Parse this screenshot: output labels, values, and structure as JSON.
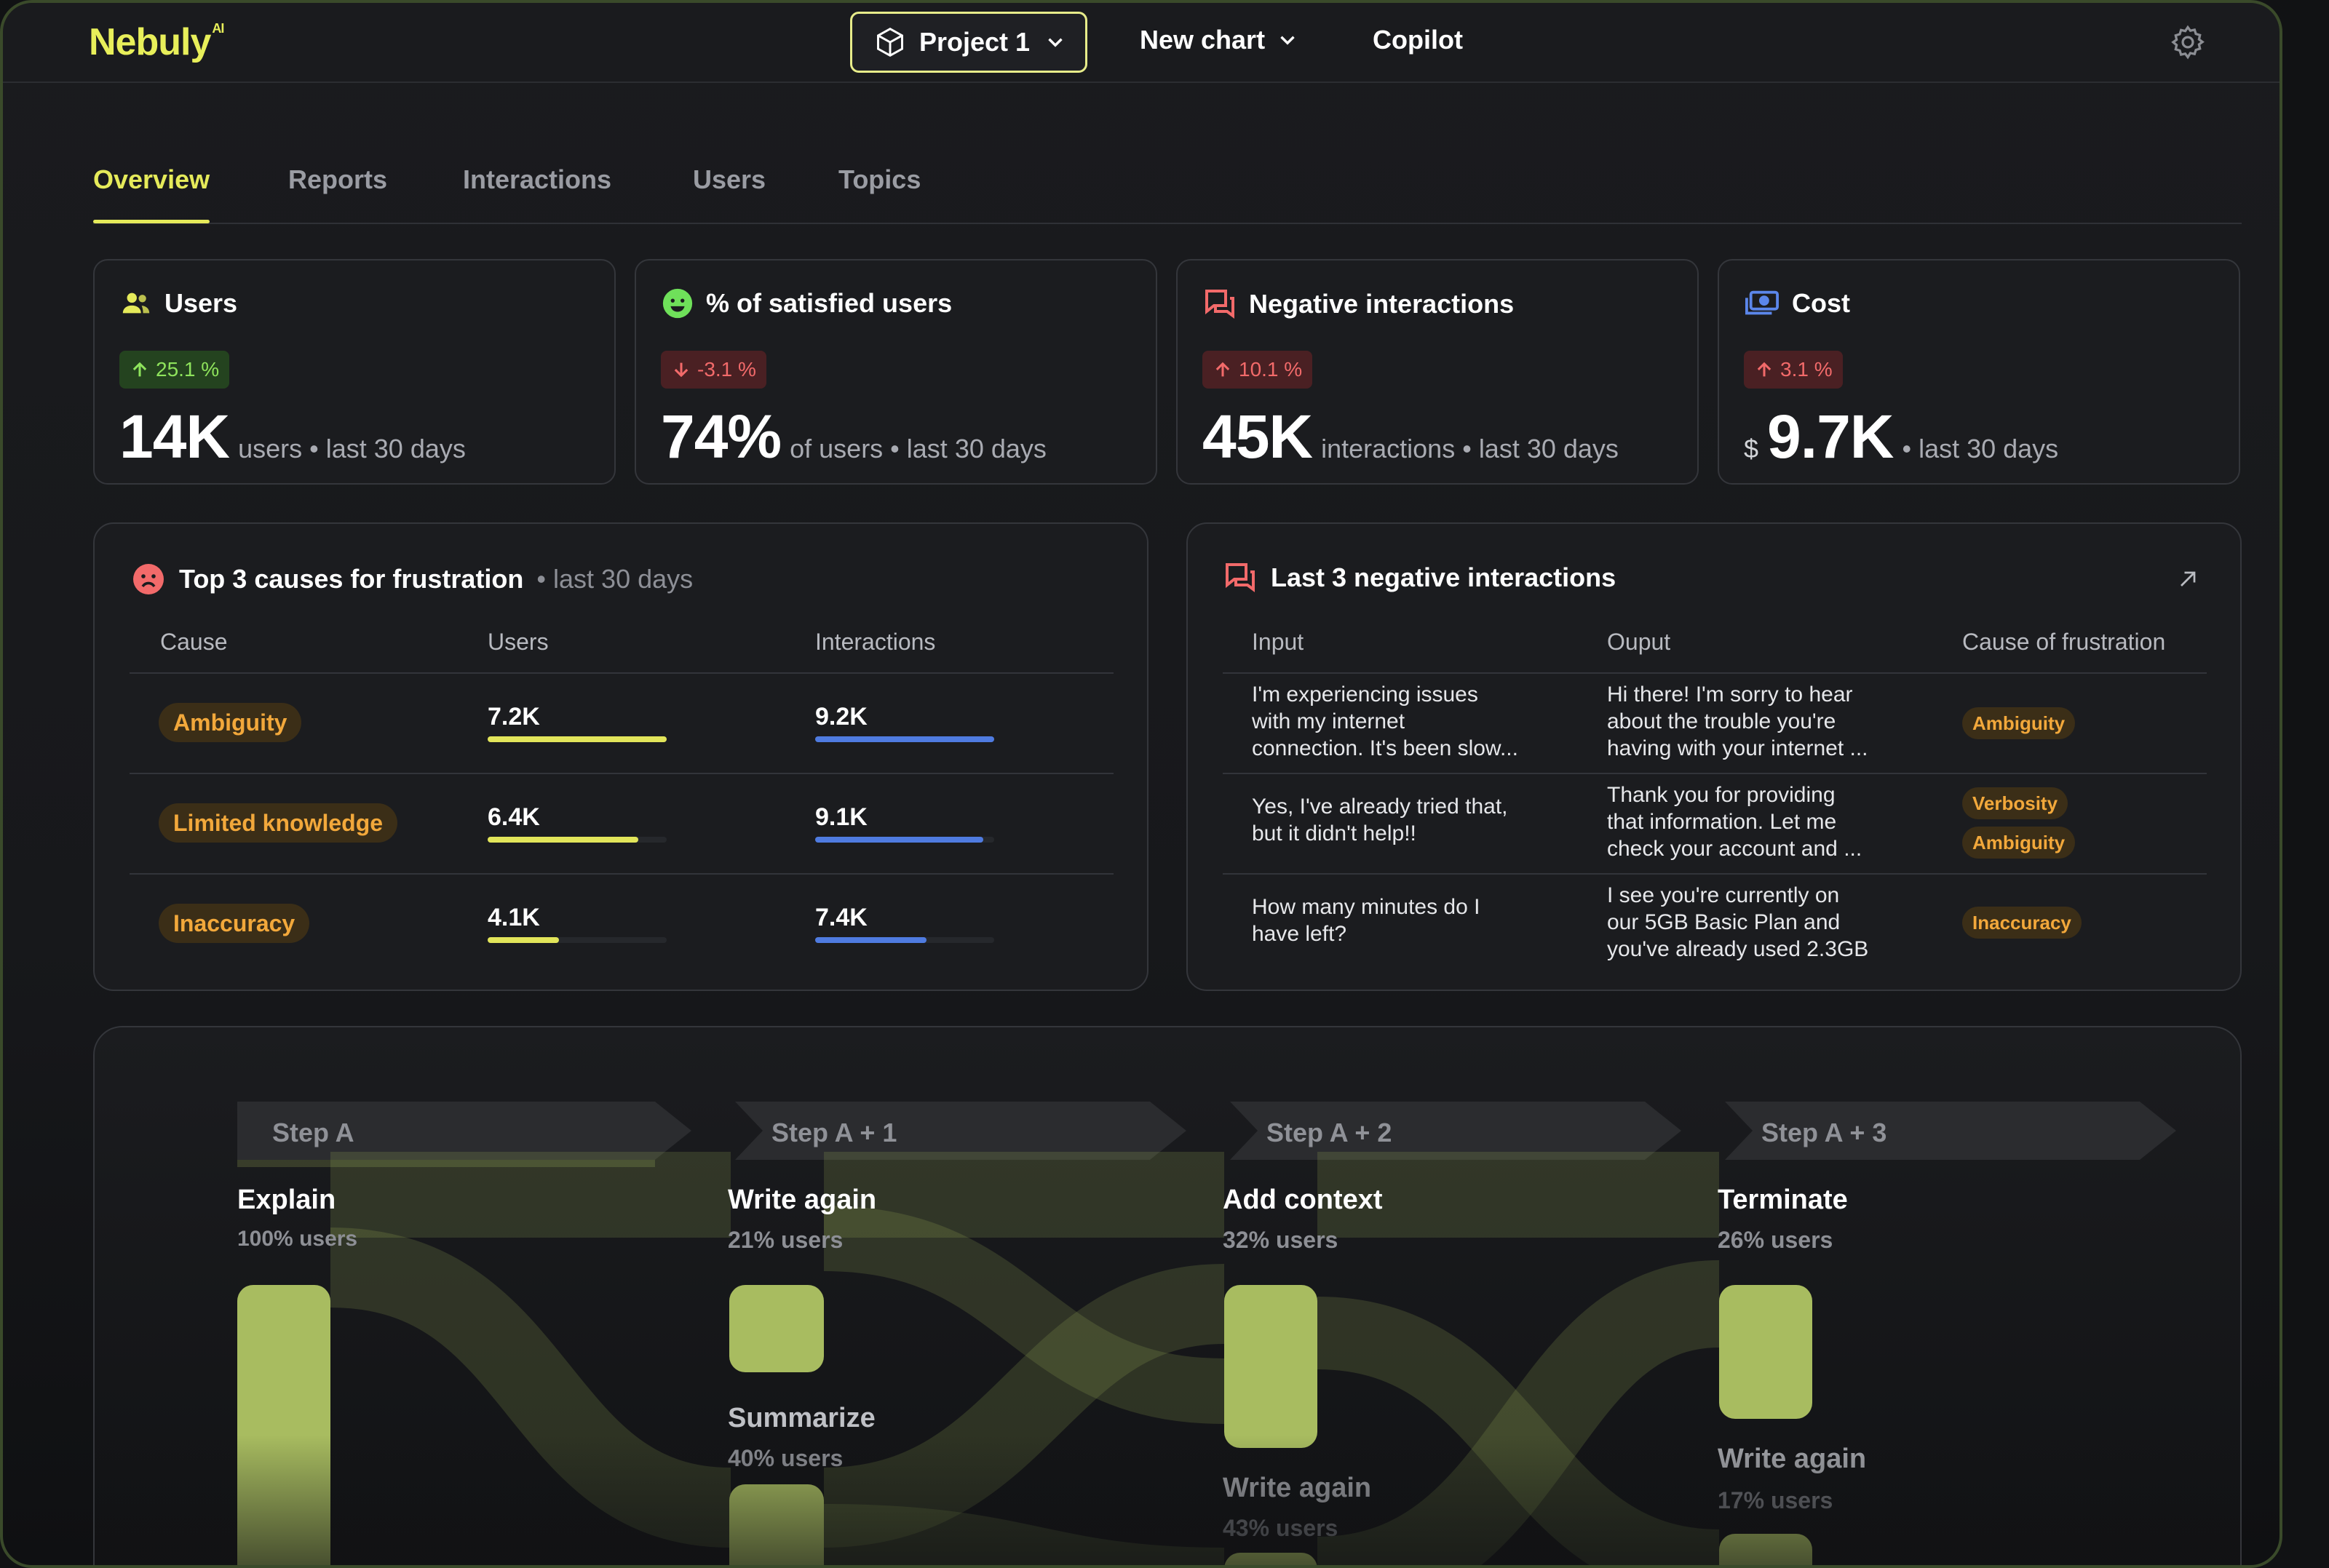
{
  "brand": {
    "name": "Nebuly",
    "sup": "AI"
  },
  "topnav": {
    "project_label": "Project 1",
    "new_chart_label": "New chart",
    "copilot_label": "Copilot"
  },
  "tabs": [
    {
      "label": "Overview",
      "active": true
    },
    {
      "label": "Reports"
    },
    {
      "label": "Interactions"
    },
    {
      "label": "Users"
    },
    {
      "label": "Topics"
    }
  ],
  "kpis": [
    {
      "title": "Users",
      "icon": "users-icon",
      "delta": "25.1 %",
      "trend": "up",
      "value": "14K",
      "suffix": "users • last 30 days"
    },
    {
      "title": "% of satisfied users",
      "icon": "smile-icon",
      "delta": "-3.1 %",
      "trend": "down",
      "value": "74%",
      "suffix": "of users • last 30 days"
    },
    {
      "title": "Negative interactions",
      "icon": "chat-bubbles-icon",
      "delta": "10.1 %",
      "trend": "up",
      "value": "45K",
      "suffix": "interactions • last 30 days"
    },
    {
      "title": "Cost",
      "icon": "money-icon",
      "delta": "3.1 %",
      "trend": "up",
      "currency": "$",
      "value": "9.7K",
      "suffix": "• last 30 days"
    }
  ],
  "frustration": {
    "title": "Top 3 causes for frustration",
    "subtitle": "• last 30 days",
    "headers": [
      "Cause",
      "Users",
      "Interactions"
    ],
    "rows": [
      {
        "cause": "Ambiguity",
        "users": "7.2K",
        "users_frac": 1.0,
        "interactions": "9.2K",
        "interactions_frac": 1.0
      },
      {
        "cause": "Limited knowledge",
        "users": "6.4K",
        "users_frac": 0.84,
        "interactions": "9.1K",
        "interactions_frac": 0.94
      },
      {
        "cause": "Inaccuracy",
        "users": "4.1K",
        "users_frac": 0.4,
        "interactions": "7.4K",
        "interactions_frac": 0.62
      }
    ]
  },
  "negative": {
    "title": "Last 3 negative interactions",
    "headers": [
      "Input",
      "Ouput",
      "Cause of frustration"
    ],
    "rows": [
      {
        "input": "I'm experiencing issues\nwith my internet\nconnection. It's been slow...",
        "output": "Hi there! I'm sorry to hear\nabout the trouble you're\nhaving with your internet ...",
        "causes": [
          "Ambiguity"
        ]
      },
      {
        "input": "Yes, I've already tried that,\nbut it didn't help!!",
        "output": "Thank you for providing\nthat information. Let me\ncheck your account and ...",
        "causes": [
          "Verbosity",
          "Ambiguity"
        ]
      },
      {
        "input": "How many minutes do I\nhave left?",
        "output": "I see you're currently on\nour 5GB Basic Plan and\nyou've already used 2.3GB",
        "causes": [
          "Inaccuracy"
        ]
      }
    ]
  },
  "flow": {
    "steps": [
      "Step A",
      "Step A + 1",
      "Step A + 2",
      "Step A + 3"
    ],
    "nodes": [
      {
        "name": "Explain",
        "pct": "100% users"
      },
      {
        "name": "Write again",
        "pct": "21% users"
      },
      {
        "name": "Add context",
        "pct": "32% users"
      },
      {
        "name": "Terminate",
        "pct": "26% users"
      },
      {
        "name": "Summarize",
        "pct": "40% users"
      },
      {
        "name": "Write again",
        "pct": "43% users"
      },
      {
        "name": "Write again",
        "pct": "17% users"
      }
    ]
  },
  "colors": {
    "accent": "#e5ea5a",
    "good": "#8ee35c",
    "bad": "#f26a6a",
    "users_bar": "#e2e55a",
    "interactions_bar": "#4f7be0",
    "flow_node": "#a8bc60"
  }
}
